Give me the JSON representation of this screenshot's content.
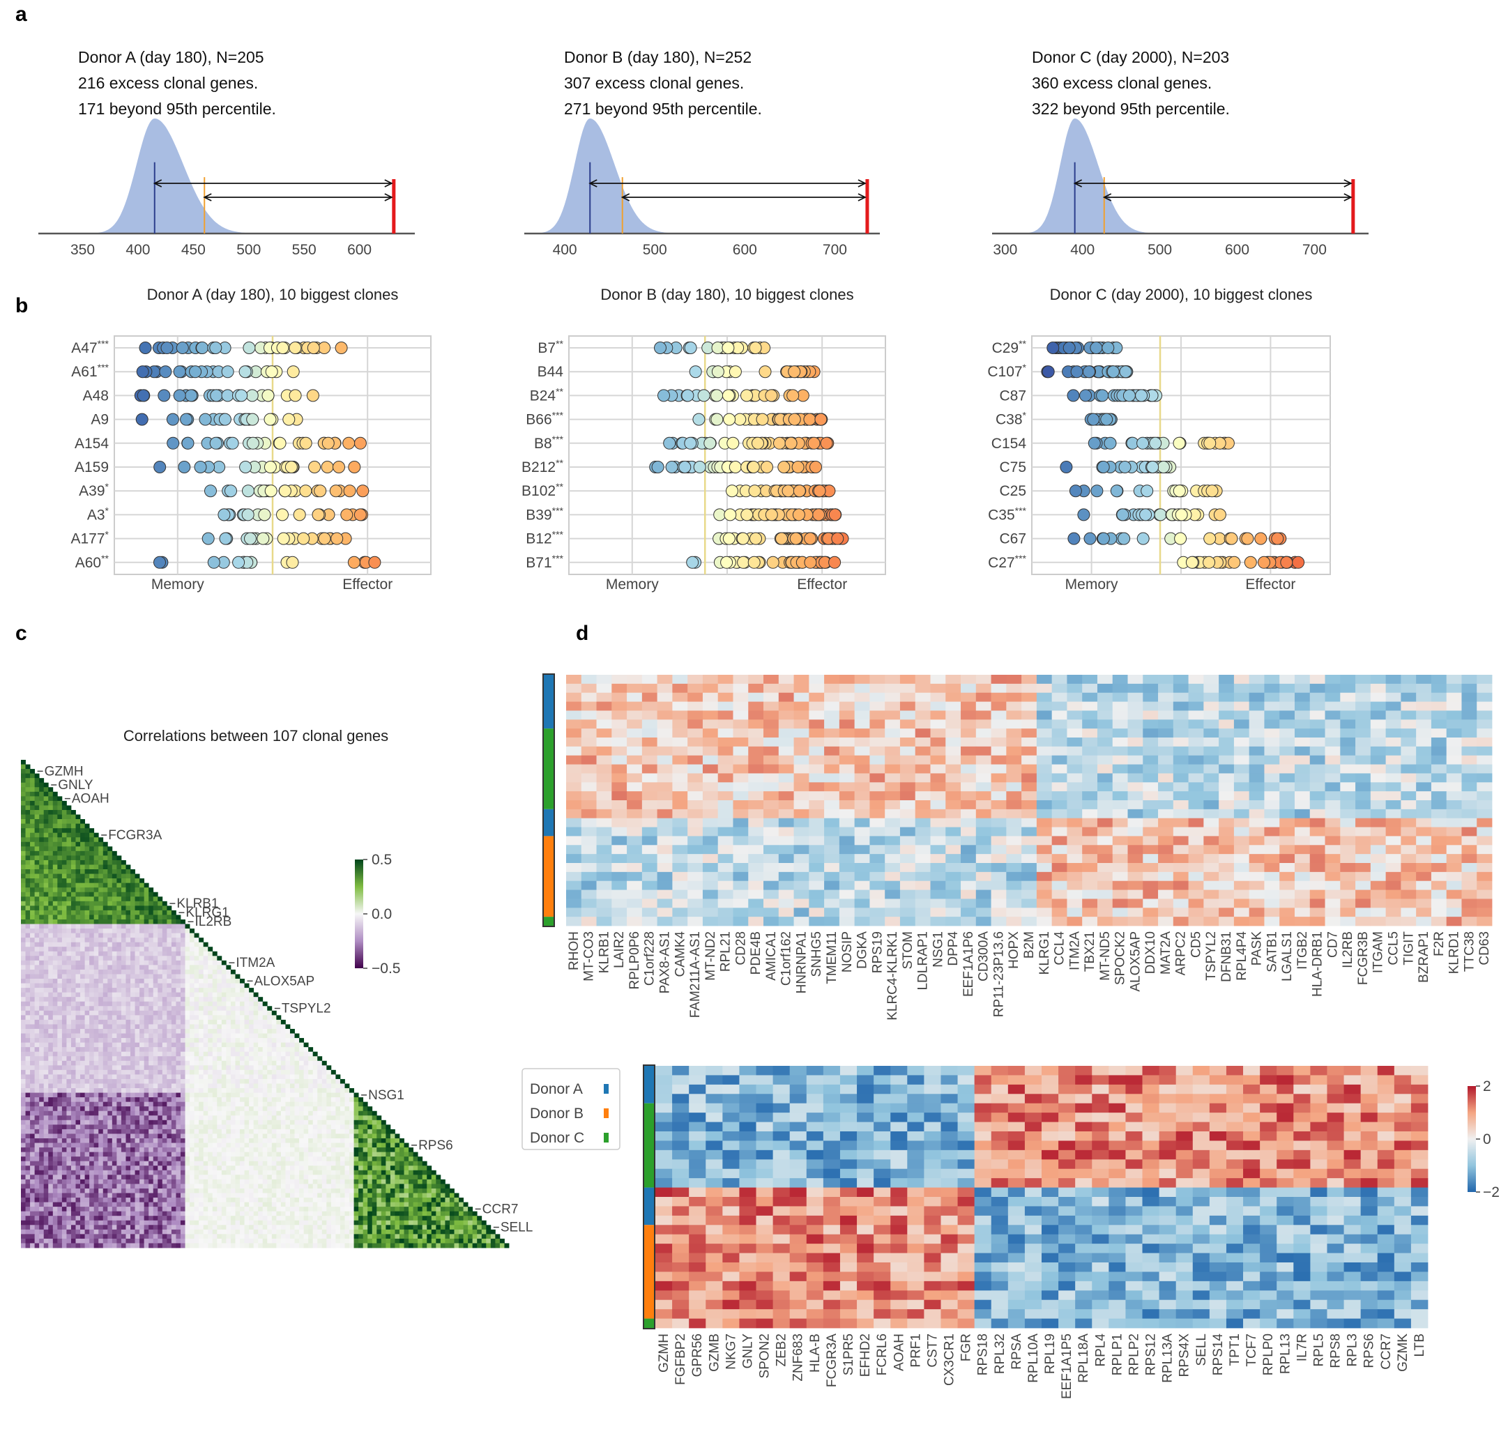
{
  "panels": {
    "a": "a",
    "b": "b",
    "c": "c",
    "d": "d"
  },
  "chart_data": [
    {
      "panel": "a",
      "type": "area",
      "subplots": [
        {
          "id": "A",
          "lines": [
            "Donor A (day 180), N=205",
            "216 excess clonal genes.",
            "171 beyond 95th percentile."
          ],
          "xticks": [
            350,
            400,
            450,
            500,
            550,
            600
          ],
          "xlim": [
            310,
            650
          ],
          "null_mean": 415,
          "null_sd": 19,
          "median": 415,
          "p95": 460,
          "observed": 631
        },
        {
          "id": "B",
          "lines": [
            "Donor B (day 180), N=252",
            "307 excess clonal genes.",
            "271 beyond 95th percentile."
          ],
          "xticks": [
            400,
            500,
            600,
            700
          ],
          "xlim": [
            355,
            750
          ],
          "null_mean": 428,
          "null_sd": 20,
          "median": 428,
          "p95": 464,
          "observed": 736
        },
        {
          "id": "C",
          "lines": [
            "Donor C (day 2000), N=203",
            "360 excess clonal genes.",
            "322 beyond 95th percentile."
          ],
          "xticks": [
            300,
            400,
            500,
            600,
            700
          ],
          "xlim": [
            283,
            770
          ],
          "null_mean": 390,
          "null_sd": 22,
          "median": 390,
          "p95": 428,
          "observed": 750
        }
      ]
    },
    {
      "panel": "b",
      "type": "scatter",
      "xlabels": [
        "Memory",
        "Effector"
      ],
      "subplots": [
        {
          "title": "Donor A (day 180), 10 biggest clones",
          "rows": [
            {
              "name": "A47",
              "stars": "***"
            },
            {
              "name": "A61",
              "stars": "***"
            },
            {
              "name": "A48",
              "stars": ""
            },
            {
              "name": "A9",
              "stars": ""
            },
            {
              "name": "A154",
              "stars": ""
            },
            {
              "name": "A159",
              "stars": ""
            },
            {
              "name": "A39",
              "stars": "*"
            },
            {
              "name": "A3",
              "stars": "*"
            },
            {
              "name": "A177",
              "stars": "*"
            },
            {
              "name": "A60",
              "stars": "**"
            }
          ],
          "ranges": [
            [
              0.02,
              0.72
            ],
            [
              0.04,
              0.58
            ],
            [
              0.08,
              0.66
            ],
            [
              0.08,
              0.6
            ],
            [
              0.18,
              0.78
            ],
            [
              0.14,
              0.76
            ],
            [
              0.3,
              0.8
            ],
            [
              0.3,
              0.79
            ],
            [
              0.28,
              0.83
            ],
            [
              0.12,
              0.84
            ]
          ],
          "counts": [
            30,
            22,
            24,
            18,
            24,
            20,
            22,
            20,
            22,
            18
          ],
          "midline": 0.5
        },
        {
          "title": "Donor B (day 180), 10 biggest clones",
          "rows": [
            {
              "name": "B7",
              "stars": "**"
            },
            {
              "name": "B44",
              "stars": ""
            },
            {
              "name": "B24",
              "stars": "**"
            },
            {
              "name": "B66",
              "stars": "***"
            },
            {
              "name": "B8",
              "stars": "***"
            },
            {
              "name": "B212",
              "stars": "**"
            },
            {
              "name": "B102",
              "stars": "**"
            },
            {
              "name": "B39",
              "stars": "***"
            },
            {
              "name": "B12",
              "stars": "***"
            },
            {
              "name": "B71",
              "stars": "***"
            }
          ],
          "ranges": [
            [
              0.28,
              0.62
            ],
            [
              0.22,
              0.79
            ],
            [
              0.2,
              0.77
            ],
            [
              0.39,
              0.8
            ],
            [
              0.24,
              0.82
            ],
            [
              0.22,
              0.8
            ],
            [
              0.46,
              0.83
            ],
            [
              0.45,
              0.85
            ],
            [
              0.45,
              0.87
            ],
            [
              0.33,
              0.84
            ]
          ],
          "counts": [
            20,
            22,
            24,
            40,
            38,
            36,
            38,
            42,
            40,
            36
          ],
          "midline": 0.43
        },
        {
          "title": "Donor C (day 2000), 10 biggest clones",
          "rows": [
            {
              "name": "C29",
              "stars": "**"
            },
            {
              "name": "C107",
              "stars": "*"
            },
            {
              "name": "C87",
              "stars": ""
            },
            {
              "name": "C38",
              "stars": "*"
            },
            {
              "name": "C154",
              "stars": ""
            },
            {
              "name": "C75",
              "stars": ""
            },
            {
              "name": "C25",
              "stars": ""
            },
            {
              "name": "C35",
              "stars": "***"
            },
            {
              "name": "C67",
              "stars": ""
            },
            {
              "name": "C27",
              "stars": "***"
            }
          ],
          "ranges": [
            [
              0.04,
              0.3
            ],
            [
              0.03,
              0.32
            ],
            [
              0.06,
              0.42
            ],
            [
              0.18,
              0.27
            ],
            [
              0.06,
              0.67
            ],
            [
              0.06,
              0.47
            ],
            [
              0.13,
              0.65
            ],
            [
              0.1,
              0.65
            ],
            [
              0.07,
              0.87
            ],
            [
              0.5,
              0.92
            ]
          ],
          "counts": [
            24,
            30,
            24,
            14,
            26,
            20,
            18,
            26,
            20,
            28
          ],
          "midline": 0.43
        }
      ]
    },
    {
      "panel": "c",
      "type": "heatmap",
      "title": "Correlations between 107 clonal genes",
      "n_genes": 107,
      "labels": [
        {
          "gene": "GZMH",
          "index": 2
        },
        {
          "gene": "GNLY",
          "index": 5
        },
        {
          "gene": "AOAH",
          "index": 8
        },
        {
          "gene": "FCGR3A",
          "index": 16
        },
        {
          "gene": "KLRB1",
          "index": 31
        },
        {
          "gene": "KLRG1",
          "index": 33
        },
        {
          "gene": "IL2RB",
          "index": 35
        },
        {
          "gene": "ITM2A",
          "index": 44
        },
        {
          "gene": "ALOX5AP",
          "index": 48
        },
        {
          "gene": "TSPYL2",
          "index": 54
        },
        {
          "gene": "NSG1",
          "index": 73
        },
        {
          "gene": "RPS6",
          "index": 84
        },
        {
          "gene": "CCR7",
          "index": 98
        },
        {
          "gene": "SELL",
          "index": 102
        }
      ],
      "colorbar": {
        "ticks": [
          "0.5",
          "0.0",
          "−0.5"
        ],
        "min": -0.5,
        "max": 0.5
      }
    },
    {
      "panel": "d",
      "type": "heatmap",
      "legend": [
        {
          "label": "Donor A",
          "color": "#1f77b4"
        },
        {
          "label": "Donor B",
          "color": "#ff7f0e"
        },
        {
          "label": "Donor C",
          "color": "#2ca02c"
        }
      ],
      "colorbar": {
        "ticks": [
          "2",
          "0",
          "−2"
        ],
        "min": -2,
        "max": 2
      },
      "top": {
        "genes": [
          "RHOH",
          "MT-CO3",
          "KLRB1",
          "LAIR2",
          "RPLP0P6",
          "C1orf228",
          "PAX8-AS1",
          "CAMK4",
          "FAM211A-AS1",
          "MT-ND2",
          "RPL21",
          "CD28",
          "PDE4B",
          "AMICA1",
          "C1orf162",
          "HNRNPA1",
          "SNHG5",
          "TMEM11",
          "NOSIP",
          "DGKA",
          "RPS19",
          "KLRC4-KLRK1",
          "STOM",
          "LDLRAP1",
          "NSG1",
          "DPP4",
          "EEF1A1P6",
          "CD300A",
          "RP11-23P13.6",
          "HOPX",
          "B2M",
          "KLRG1",
          "CCL4",
          "ITM2A",
          "TBX21",
          "MT-ND5",
          "SPOCK2",
          "ALOX5AP",
          "DDX10",
          "MAT2A",
          "ARPC2",
          "CD5",
          "TSPYL2",
          "DFNB31",
          "RPL4P4",
          "PASK",
          "SATB1",
          "LGALS1",
          "ITGB2",
          "HLA-DRB1",
          "CD7",
          "IL2RB",
          "FCGR3B",
          "ITGAM",
          "CCL5",
          "TIGIT",
          "BZRAP1",
          "F2R",
          "KLRD1",
          "TTC38",
          "CD63"
        ],
        "rows": 28,
        "donor_bands": [
          {
            "donor": "A",
            "rows": 6
          },
          {
            "donor": "C",
            "rows": 9
          },
          {
            "donor": "A",
            "rows": 3
          },
          {
            "donor": "B",
            "rows": 9
          },
          {
            "donor": "C",
            "rows": 1
          }
        ]
      },
      "bottom": {
        "genes": [
          "GZMH",
          "FGFBP2",
          "GPR56",
          "GZMB",
          "NKG7",
          "GNLY",
          "SPON2",
          "ZEB2",
          "ZNF683",
          "HLA-B",
          "FCGR3A",
          "S1PR5",
          "EFHD2",
          "FCRL6",
          "AOAH",
          "PRF1",
          "CST7",
          "CX3CR1",
          "FGR",
          "RPS18",
          "RPL32",
          "RPSA",
          "RPL10A",
          "RPL19",
          "EEF1A1P5",
          "RPL18A",
          "RPL4",
          "RPLP1",
          "RPLP2",
          "RPS12",
          "RPL13A",
          "RPS4X",
          "SELL",
          "RPS14",
          "TPT1",
          "TCF7",
          "RPLP0",
          "RPL13",
          "IL7R",
          "RPL5",
          "RPS8",
          "RPL3",
          "RPS6",
          "CCR7",
          "GZMK",
          "LTB"
        ],
        "rows": 28,
        "donor_bands": [
          {
            "donor": "A",
            "rows": 4
          },
          {
            "donor": "C",
            "rows": 9
          },
          {
            "donor": "A",
            "rows": 4
          },
          {
            "donor": "B",
            "rows": 10
          },
          {
            "donor": "C",
            "rows": 1
          }
        ]
      }
    }
  ]
}
